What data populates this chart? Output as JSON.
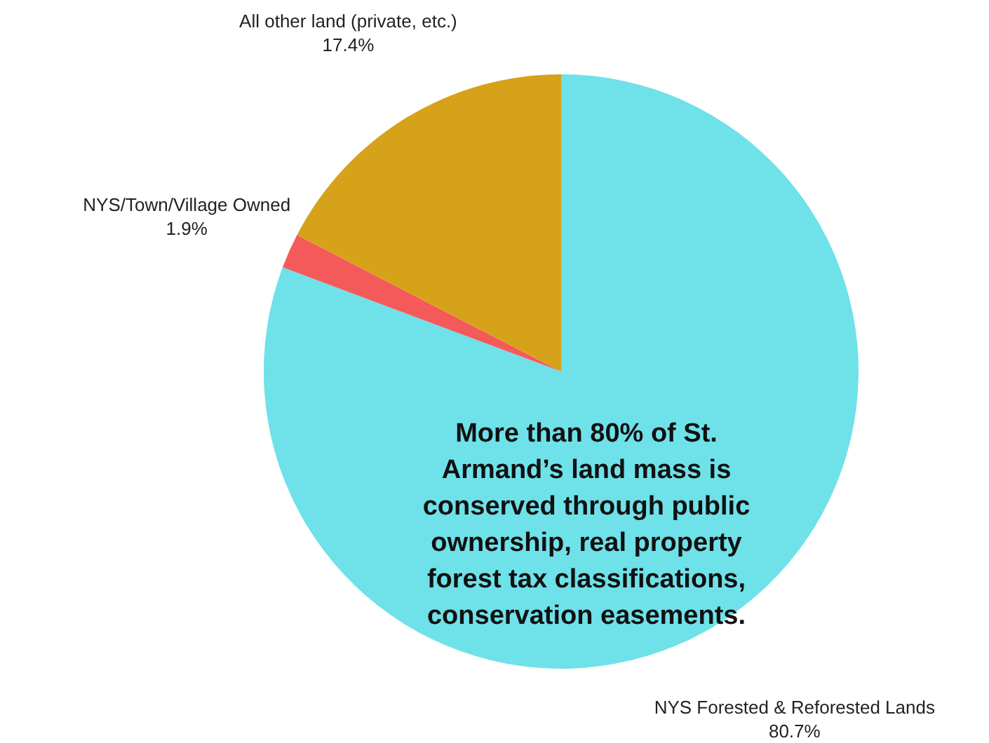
{
  "chart_data": {
    "type": "pie",
    "categories": [
      "NYS Forested & Reforested Lands",
      "NYS/Town/Village Owned",
      "All other land (private, etc.)"
    ],
    "values": [
      80.7,
      1.9,
      17.4
    ],
    "value_labels": [
      "80.7%",
      "1.9%",
      "17.4%"
    ],
    "colors": [
      "#6fe1e9",
      "#f55a5a",
      "#d6a21a"
    ],
    "annotations": [
      "More than 80% of St. Armand’s land mass is conserved through public ownership, real property forest tax classifications, conservation easements."
    ]
  }
}
